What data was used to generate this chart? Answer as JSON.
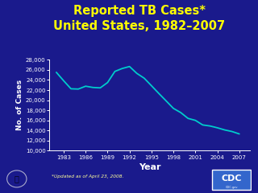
{
  "title_line1": "Reported TB Cases*",
  "title_line2": "United States, 1982–2007",
  "xlabel": "Year",
  "ylabel": "No. of Cases",
  "background_color": "#1a1a8c",
  "plot_bg_color": "#1a1a8c",
  "line_color": "#00CCCC",
  "title_color": "#FFFF00",
  "axis_text_color": "#FFFFFF",
  "footnote": "*Updated as of April 23, 2008.",
  "footnote_color": "#FFFF99",
  "years": [
    1982,
    1983,
    1984,
    1985,
    1986,
    1987,
    1988,
    1989,
    1990,
    1991,
    1992,
    1993,
    1994,
    1995,
    1996,
    1997,
    1998,
    1999,
    2000,
    2001,
    2002,
    2003,
    2004,
    2005,
    2006,
    2007
  ],
  "cases": [
    25520,
    23846,
    22255,
    22201,
    22768,
    22517,
    22436,
    23495,
    25701,
    26283,
    26673,
    25313,
    24361,
    22860,
    21337,
    19855,
    18361,
    17531,
    16377,
    15989,
    15078,
    14874,
    14517,
    14093,
    13779,
    13293
  ],
  "ylim": [
    10000,
    28000
  ],
  "yticks": [
    10000,
    12000,
    14000,
    16000,
    18000,
    20000,
    22000,
    24000,
    26000,
    28000
  ],
  "xticks": [
    1983,
    1986,
    1989,
    1992,
    1995,
    1998,
    2001,
    2004,
    2007
  ],
  "title_fontsize": 10.5,
  "axis_label_fontsize": 6.5,
  "tick_fontsize": 5.0,
  "xlabel_fontsize": 8.0
}
